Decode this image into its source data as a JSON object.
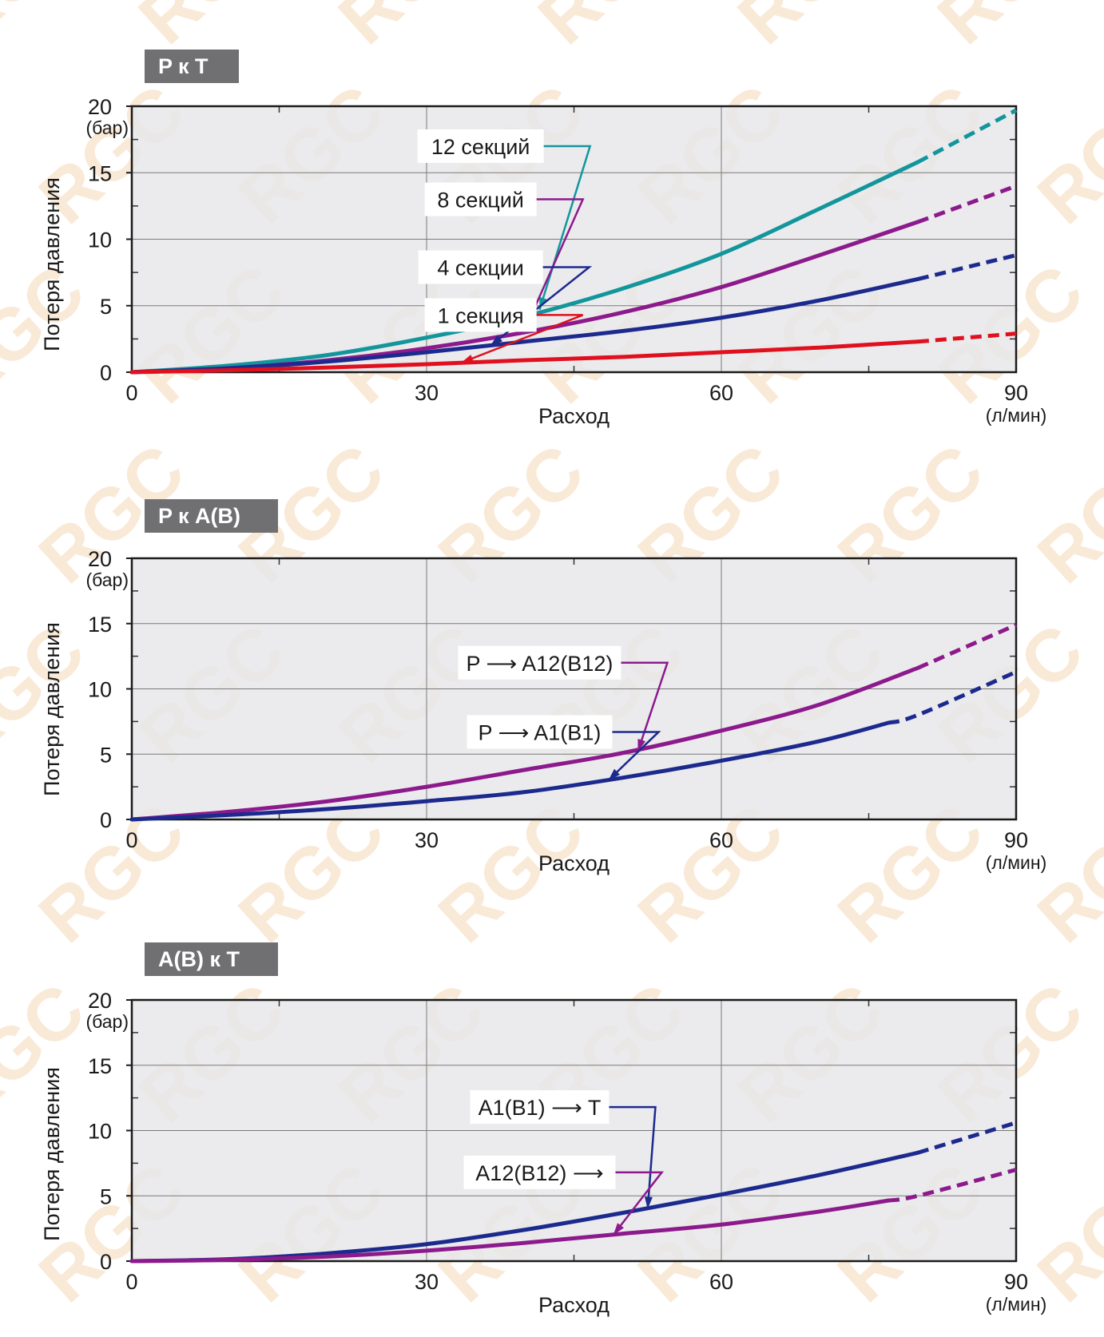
{
  "watermark": {
    "text": "RGC",
    "color": "#e8b070"
  },
  "colors": {
    "plot_bg": "#e8e8ea",
    "title_bg": "#707072",
    "teal": "#12969c",
    "purple": "#8c1a8c",
    "navy": "#1c2a8e",
    "red": "#e0101e"
  },
  "chart_data": [
    {
      "type": "line",
      "title": "P к T",
      "xlabel": "Расход",
      "x_unit": "(л/мин)",
      "ylabel": "Потеря давления",
      "y_unit": "(бар)",
      "xlim": [
        0,
        90
      ],
      "ylim": [
        0,
        20
      ],
      "xticks": [
        0,
        30,
        60,
        90
      ],
      "yticks": [
        0,
        5,
        10,
        15,
        20
      ],
      "grid": true,
      "series": [
        {
          "name": "12 секций",
          "color": "#12969c",
          "solid_until": 80,
          "x": [
            0,
            10,
            20,
            30,
            40,
            50,
            60,
            70,
            80,
            90
          ],
          "y": [
            0,
            0.5,
            1.3,
            2.6,
            4.2,
            6.3,
            8.9,
            12.3,
            15.8,
            19.7
          ]
        },
        {
          "name": "8 секций",
          "color": "#8c1a8c",
          "solid_until": 80,
          "x": [
            0,
            10,
            20,
            30,
            40,
            50,
            60,
            70,
            80,
            90
          ],
          "y": [
            0,
            0.3,
            0.9,
            1.8,
            3.0,
            4.5,
            6.4,
            8.8,
            11.3,
            14.0
          ]
        },
        {
          "name": "4 секции",
          "color": "#1c2a8e",
          "solid_until": 80,
          "x": [
            0,
            10,
            20,
            30,
            40,
            50,
            60,
            70,
            80,
            90
          ],
          "y": [
            0,
            0.3,
            0.8,
            1.5,
            2.3,
            3.1,
            4.1,
            5.4,
            7.0,
            8.8
          ]
        },
        {
          "name": "1 секция",
          "color": "#e0101e",
          "solid_until": 80,
          "x": [
            0,
            10,
            20,
            30,
            40,
            50,
            60,
            70,
            80,
            90
          ],
          "y": [
            0,
            0.15,
            0.35,
            0.6,
            0.9,
            1.15,
            1.5,
            1.85,
            2.3,
            2.9
          ]
        }
      ],
      "labels": [
        {
          "text": "12 секций",
          "series": 0,
          "at": [
            35.5,
            17.0
          ],
          "target": [
            41.5,
            4.7
          ]
        },
        {
          "text": "8 секций",
          "series": 1,
          "at": [
            35.5,
            13.0
          ],
          "target": [
            40.0,
            3.2
          ]
        },
        {
          "text": "4 секции",
          "series": 2,
          "at": [
            35.5,
            7.9
          ],
          "target": [
            36.5,
            2.0
          ]
        },
        {
          "text": "1 секция",
          "series": 3,
          "at": [
            35.5,
            4.3
          ],
          "target": [
            33.5,
            0.7
          ]
        }
      ]
    },
    {
      "type": "line",
      "title": "P к A(B)",
      "xlabel": "Расход",
      "x_unit": "(л/мин)",
      "ylabel": "Потеря давления",
      "y_unit": "(бар)",
      "xlim": [
        0,
        90
      ],
      "ylim": [
        0,
        20
      ],
      "xticks": [
        0,
        30,
        60,
        90
      ],
      "yticks": [
        0,
        5,
        10,
        15,
        20
      ],
      "grid": true,
      "series": [
        {
          "name": "P ⟶ A12(B12)",
          "color": "#8c1a8c",
          "solid_until": 80,
          "x": [
            0,
            10,
            20,
            30,
            40,
            50,
            60,
            70,
            80,
            90
          ],
          "y": [
            0,
            0.6,
            1.4,
            2.5,
            3.8,
            5.1,
            6.8,
            8.8,
            11.6,
            14.9
          ]
        },
        {
          "name": "P ⟶ A1(B1)",
          "color": "#1c2a8e",
          "solid_until": 77,
          "x": [
            0,
            10,
            20,
            30,
            40,
            50,
            60,
            70,
            80,
            90
          ],
          "y": [
            0,
            0.35,
            0.8,
            1.4,
            2.1,
            3.2,
            4.5,
            6.0,
            8.0,
            11.3
          ]
        }
      ],
      "labels": [
        {
          "text": "P ⟶ A12(B12)",
          "series": 0,
          "at": [
            41.5,
            12.0
          ],
          "target": [
            51.5,
            5.2
          ]
        },
        {
          "text": "P ⟶ A1(B1)",
          "series": 1,
          "at": [
            41.5,
            6.7
          ],
          "target": [
            48.5,
            3.0
          ]
        }
      ]
    },
    {
      "type": "line",
      "title": "A(B) к T",
      "xlabel": "Расход",
      "x_unit": "(л/мин)",
      "ylabel": "Потеря давления",
      "y_unit": "(бар)",
      "xlim": [
        0,
        90
      ],
      "ylim": [
        0,
        20
      ],
      "xticks": [
        0,
        30,
        60,
        90
      ],
      "yticks": [
        0,
        5,
        10,
        15,
        20
      ],
      "grid": true,
      "series": [
        {
          "name": "A1(B1) ⟶ T",
          "color": "#1c2a8e",
          "solid_until": 80,
          "x": [
            0,
            10,
            20,
            30,
            40,
            50,
            60,
            70,
            80,
            90
          ],
          "y": [
            0,
            0.15,
            0.6,
            1.3,
            2.4,
            3.7,
            5.1,
            6.6,
            8.3,
            10.6
          ]
        },
        {
          "name": "A12(B12) ⟶",
          "color": "#8c1a8c",
          "solid_until": 77,
          "x": [
            0,
            10,
            20,
            30,
            40,
            50,
            60,
            70,
            80,
            90
          ],
          "y": [
            0,
            0.1,
            0.35,
            0.8,
            1.4,
            2.1,
            2.8,
            3.8,
            5.0,
            7.0
          ]
        }
      ],
      "labels": [
        {
          "text": "A1(B1) ⟶ T",
          "series": 0,
          "at": [
            41.5,
            11.8
          ],
          "target": [
            52.5,
            4.0
          ]
        },
        {
          "text": "A12(B12) ⟶",
          "series": 1,
          "at": [
            41.5,
            6.8
          ],
          "target": [
            49.0,
            2.0
          ]
        }
      ]
    }
  ]
}
